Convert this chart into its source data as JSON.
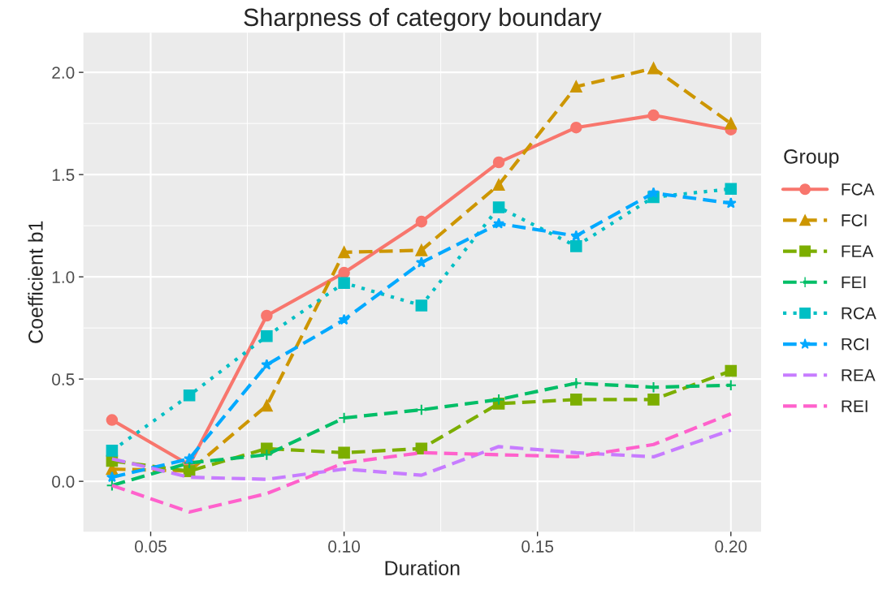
{
  "chart_data": {
    "type": "line",
    "title": "Sharpness of category boundary",
    "xlabel": "Duration",
    "ylabel": "Coefficient b1",
    "legend_title": "Group",
    "x": [
      0.04,
      0.06,
      0.08,
      0.1,
      0.12,
      0.14,
      0.16,
      0.18,
      0.2
    ],
    "series": [
      {
        "name": "FCA",
        "color": "#F8766D",
        "marker": "circle",
        "line_style": "solid",
        "values": [
          0.3,
          0.08,
          0.81,
          1.02,
          1.27,
          1.56,
          1.73,
          1.79,
          1.72
        ]
      },
      {
        "name": "FCI",
        "color": "#CD9600",
        "marker": "triangle",
        "line_style": "dashed",
        "values": [
          0.06,
          0.05,
          0.37,
          1.12,
          1.13,
          1.45,
          1.93,
          2.02,
          1.75
        ]
      },
      {
        "name": "FEA",
        "color": "#7CAE00",
        "marker": "square",
        "line_style": "dashed",
        "values": [
          0.1,
          0.05,
          0.16,
          0.14,
          0.16,
          0.38,
          0.4,
          0.4,
          0.54
        ]
      },
      {
        "name": "FEI",
        "color": "#00BE67",
        "marker": "cross",
        "line_style": "dashed",
        "values": [
          -0.02,
          0.09,
          0.13,
          0.31,
          0.35,
          0.4,
          0.48,
          0.46,
          0.47
        ]
      },
      {
        "name": "RCA",
        "color": "#00BFC4",
        "marker": "square",
        "line_style": "dotted",
        "values": [
          0.15,
          0.42,
          0.71,
          0.97,
          0.86,
          1.34,
          1.15,
          1.39,
          1.43
        ]
      },
      {
        "name": "RCI",
        "color": "#00A9FF",
        "marker": "star",
        "line_style": "dashed",
        "values": [
          0.02,
          0.11,
          0.57,
          0.79,
          1.07,
          1.26,
          1.2,
          1.41,
          1.36
        ]
      },
      {
        "name": "REA",
        "color": "#C77CFF",
        "marker": "none",
        "line_style": "dashed",
        "values": [
          0.11,
          0.02,
          0.01,
          0.06,
          0.03,
          0.17,
          0.14,
          0.12,
          0.25
        ]
      },
      {
        "name": "REI",
        "color": "#FF61CC",
        "marker": "none",
        "line_style": "dashed",
        "values": [
          -0.02,
          -0.15,
          -0.06,
          0.09,
          0.14,
          0.13,
          0.12,
          0.18,
          0.33
        ]
      }
    ],
    "xlim": [
      0.0326,
      0.2078
    ],
    "ylim": [
      -0.246,
      2.194
    ],
    "xticks": [
      {
        "value": 0.05,
        "label": "0.05"
      },
      {
        "value": 0.1,
        "label": "0.10"
      },
      {
        "value": 0.15,
        "label": "0.15"
      },
      {
        "value": 0.2,
        "label": "0.20"
      }
    ],
    "yticks": [
      {
        "value": 0.0,
        "label": "0.0"
      },
      {
        "value": 0.5,
        "label": "0.5"
      },
      {
        "value": 1.0,
        "label": "1.0"
      },
      {
        "value": 1.5,
        "label": "1.5"
      },
      {
        "value": 2.0,
        "label": "2.0"
      }
    ],
    "grid": true,
    "legend": "right"
  }
}
